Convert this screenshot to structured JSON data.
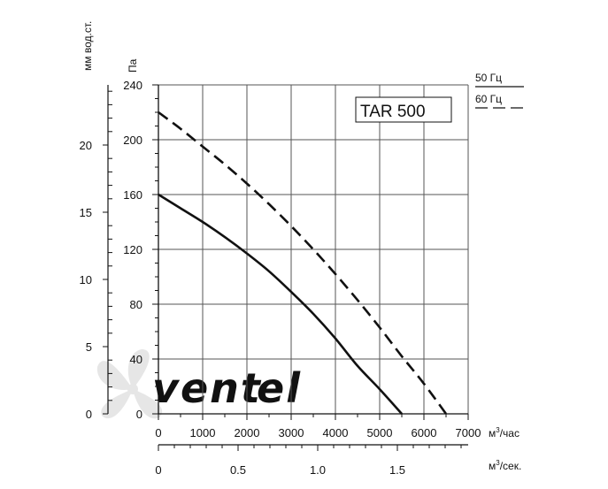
{
  "chart_data": {
    "type": "line",
    "title": "TAR 500",
    "xlabel": "м³/час",
    "ylabel": "Па",
    "xlim": [
      0,
      7000
    ],
    "ylim": [
      0,
      240
    ],
    "x_ticks": [
      0,
      1000,
      2000,
      3000,
      4000,
      5000,
      6000,
      7000
    ],
    "x_tick_labels": [
      "0",
      "1000",
      "2000",
      "3000",
      "4000",
      "5000",
      "6000",
      "7000"
    ],
    "y_ticks": [
      0,
      40,
      80,
      120,
      160,
      200,
      240
    ],
    "y_tick_labels": [
      "0",
      "40",
      "80",
      "120",
      "160",
      "200",
      "240"
    ],
    "secondary_y_axis": {
      "label": "мм вод.ст.",
      "ticks": [
        0,
        5,
        10,
        15,
        20
      ],
      "tick_labels": [
        "0",
        "5",
        "10",
        "15",
        "20"
      ]
    },
    "secondary_x_axis": {
      "label": "м³/сек.",
      "ticks": [
        0,
        0.5,
        1.0,
        1.5
      ],
      "tick_labels": [
        "0",
        "0.5",
        "1.0",
        "1.5"
      ]
    },
    "grid": true,
    "legend_position": "top-right",
    "series": [
      {
        "name": "50 Гц",
        "style": "solid",
        "x": [
          0,
          500,
          1000,
          1500,
          2000,
          2500,
          3000,
          3500,
          4000,
          4500,
          5000,
          5500
        ],
        "y": [
          160,
          150,
          140,
          129,
          117,
          104,
          89,
          73,
          55,
          35,
          18,
          0
        ]
      },
      {
        "name": "60 Гц",
        "style": "dashed",
        "x": [
          0,
          500,
          1000,
          1500,
          2000,
          2500,
          3000,
          3500,
          4000,
          4500,
          5000,
          5500,
          6000,
          6500
        ],
        "y": [
          220,
          208,
          195,
          182,
          168,
          153,
          137,
          120,
          102,
          83,
          63,
          42,
          22,
          0
        ]
      }
    ]
  },
  "colors": {
    "line": "#111111",
    "grid": "#555555",
    "watermark": "#e3e3e3",
    "watermark_accent": "#cfe0ee"
  },
  "watermark": {
    "text_main": "vent",
    "text_accent": "el",
    "icon": "fan-icon"
  },
  "units": {
    "m3": "м",
    "sup": "3",
    "hour": "/час",
    "sec": "/сек."
  }
}
